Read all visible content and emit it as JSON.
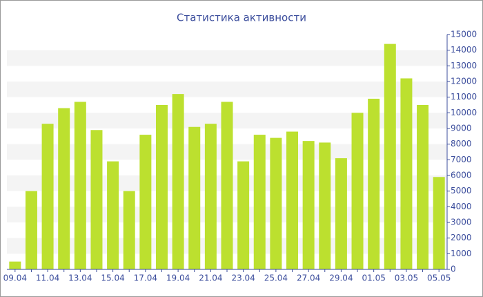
{
  "chart_data": {
    "type": "bar",
    "title": "Статистика активности",
    "categories": [
      "09.04",
      null,
      "11.04",
      null,
      "13.04",
      null,
      "15.04",
      null,
      "17.04",
      null,
      "19.04",
      null,
      "21.04",
      null,
      "23.04",
      null,
      "25.04",
      null,
      "27.04",
      null,
      "29.04",
      null,
      "01.05",
      null,
      "03.05",
      null,
      "05.05"
    ],
    "values": [
      500,
      5000,
      9300,
      10300,
      10700,
      8900,
      6900,
      5000,
      8600,
      10500,
      11200,
      9100,
      9300,
      10700,
      6900,
      8600,
      8400,
      8800,
      8200,
      8100,
      7100,
      10000,
      10900,
      14400,
      12200,
      10500,
      5900
    ],
    "color": "#bce02f",
    "ylim": [
      0,
      15000
    ],
    "yticks": [
      0,
      1000,
      2000,
      3000,
      4000,
      5000,
      6000,
      7000,
      8000,
      9000,
      10000,
      11000,
      12000,
      13000,
      14000,
      15000
    ],
    "grid": true
  }
}
